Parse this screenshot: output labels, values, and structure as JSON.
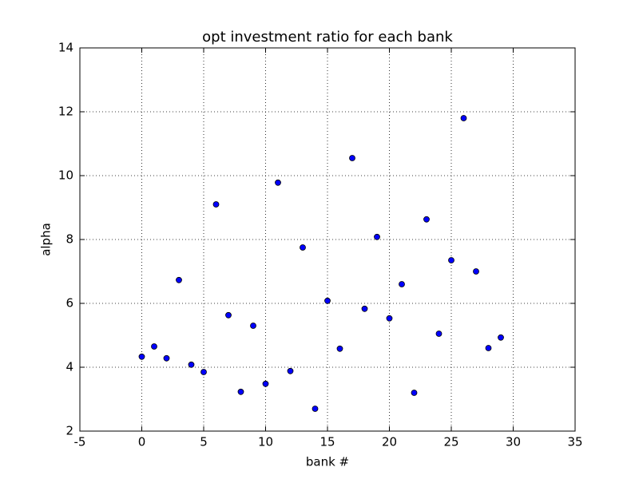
{
  "chart_data": {
    "type": "scatter",
    "title": "opt investment ratio for each bank",
    "x_label": "bank #",
    "y_label": "alpha",
    "x": [
      0,
      1,
      2,
      3,
      4,
      5,
      6,
      7,
      8,
      9,
      10,
      11,
      12,
      13,
      14,
      15,
      16,
      17,
      18,
      19,
      20,
      21,
      22,
      23,
      24,
      25,
      26,
      27,
      28,
      29
    ],
    "y": [
      4.33,
      4.65,
      4.28,
      6.73,
      4.08,
      3.85,
      9.1,
      5.63,
      3.23,
      5.3,
      3.48,
      9.78,
      3.88,
      7.75,
      2.7,
      6.08,
      4.58,
      10.55,
      5.83,
      8.08,
      5.53,
      6.6,
      3.2,
      8.63,
      5.05,
      7.35,
      11.8,
      7.0,
      4.6,
      4.93
    ],
    "color": "#0000ff",
    "xlim": [
      -5,
      35
    ],
    "xticks": [
      -5,
      0,
      5,
      10,
      15,
      20,
      25,
      30,
      35
    ],
    "ylim": [
      2,
      14
    ],
    "yticks": [
      2,
      4,
      6,
      8,
      10,
      12,
      14
    ],
    "grid": true
  }
}
